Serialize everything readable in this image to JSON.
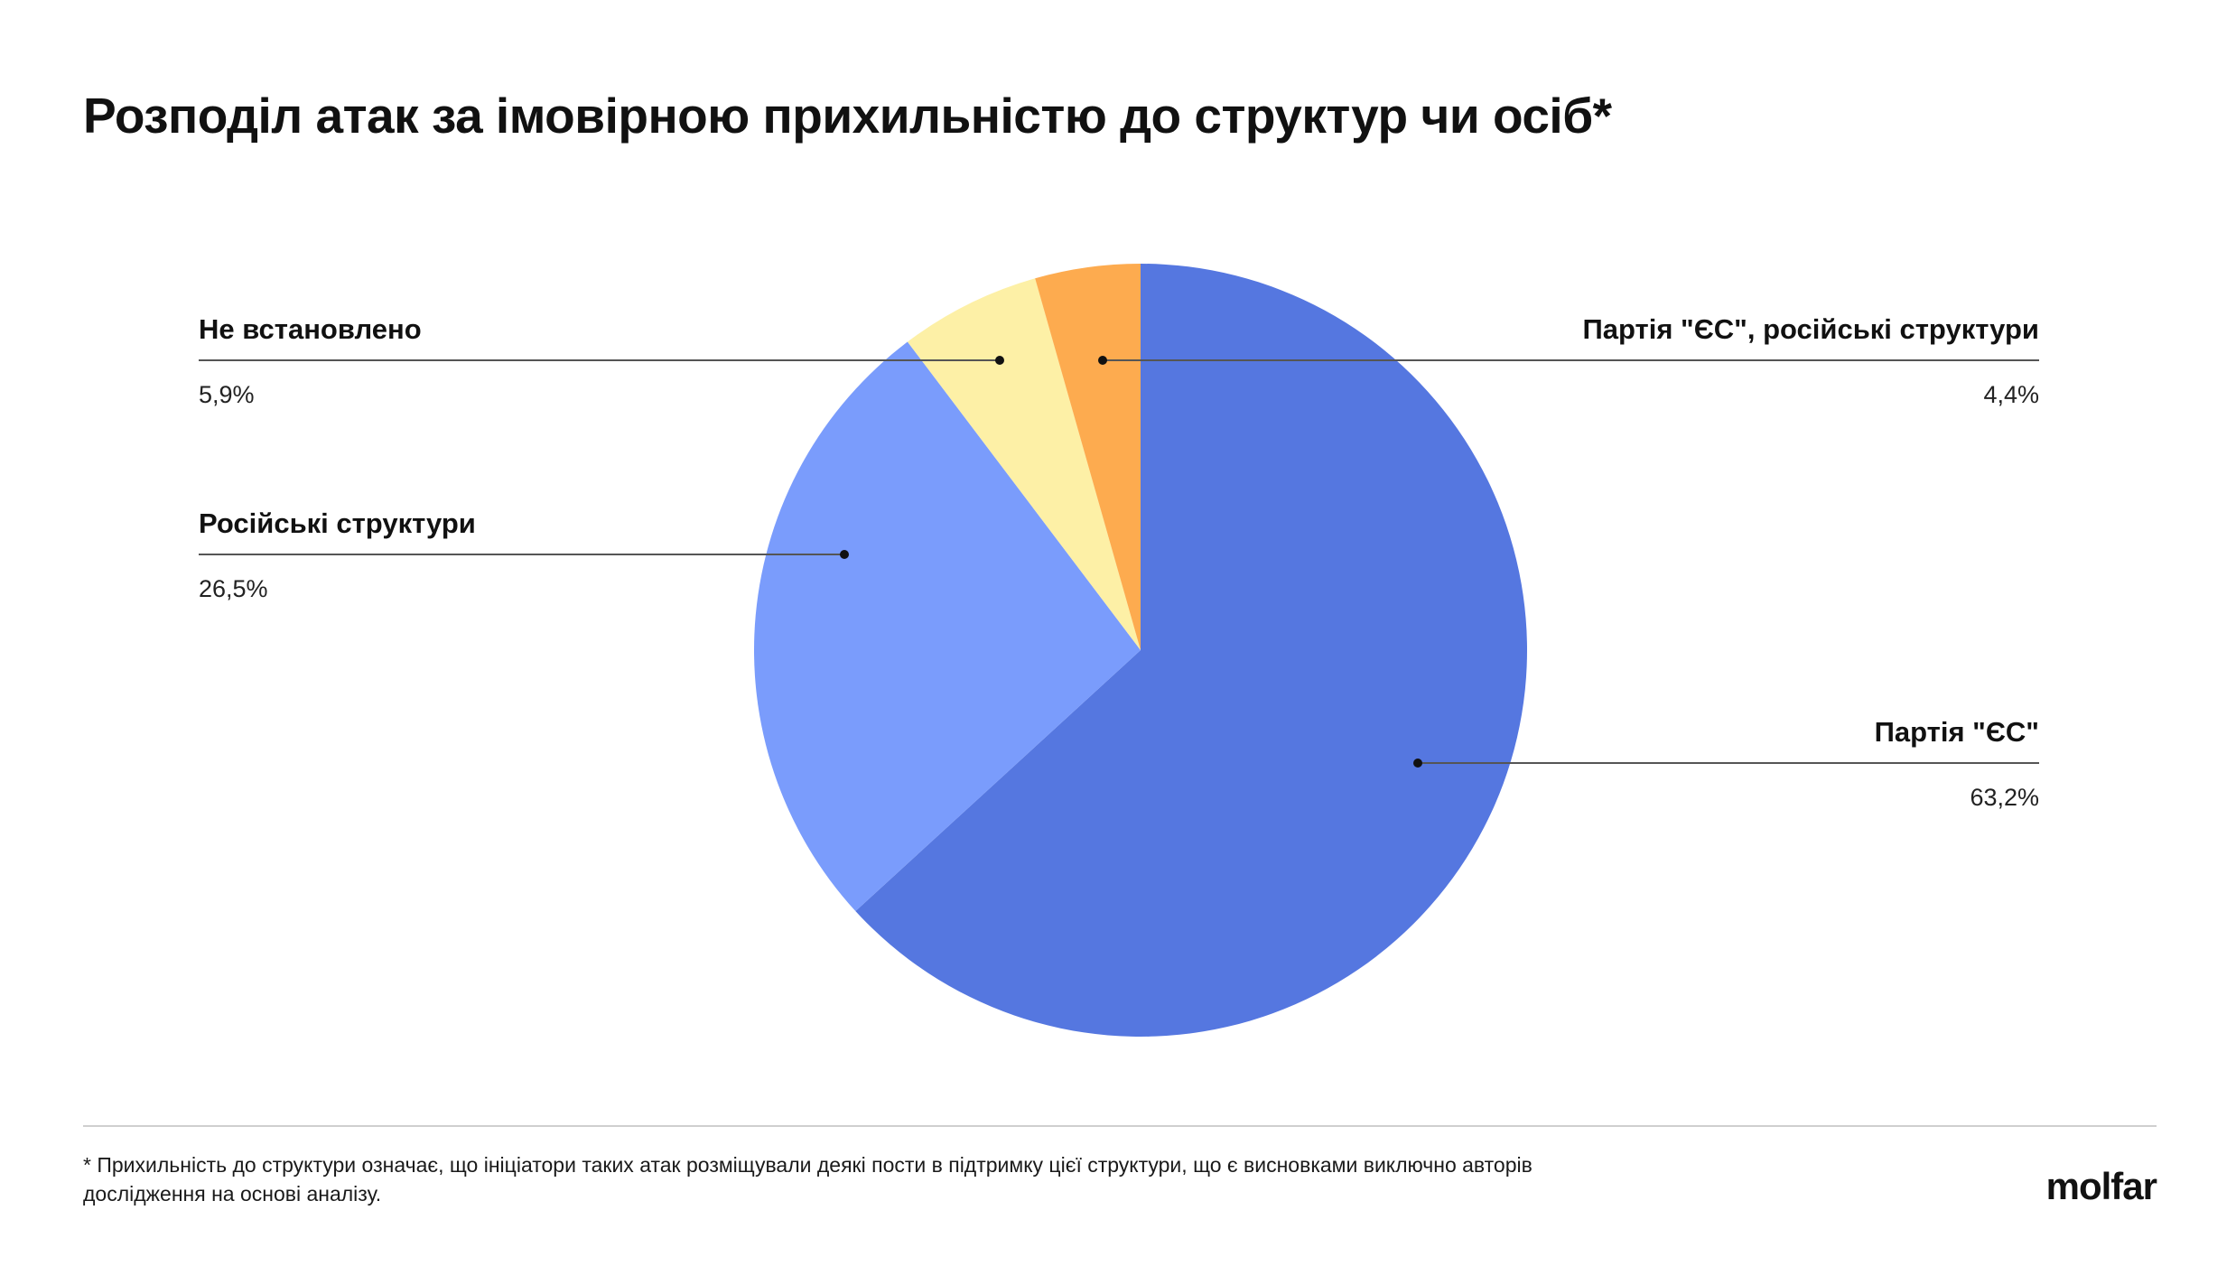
{
  "title": "Розподіл атак за імовірною прихильністю до структур чи осіб*",
  "chart_data": {
    "type": "pie",
    "slices": [
      {
        "label": "Партія \"ЄС\"",
        "value": 63.2,
        "display": "63,2%",
        "color": "#5577e0"
      },
      {
        "label": "Російські структури",
        "value": 26.5,
        "display": "26,5%",
        "color": "#7a9cfc"
      },
      {
        "label": "Не встановлено",
        "value": 5.9,
        "display": "5,9%",
        "color": "#fdf0a6"
      },
      {
        "label": "Партія \"ЄС\", російські структури",
        "value": 4.4,
        "display": "4,4%",
        "color": "#fdab4f"
      }
    ],
    "start_angle": "12 o'clock",
    "direction": "clockwise"
  },
  "footnote": "* Прихильність до структури означає, що ініціатори таких атак розміщували деякі пости в підтримку цієї структури, що є висновками виключно авторів дослідження на основі аналізу.",
  "logo": "molfar"
}
